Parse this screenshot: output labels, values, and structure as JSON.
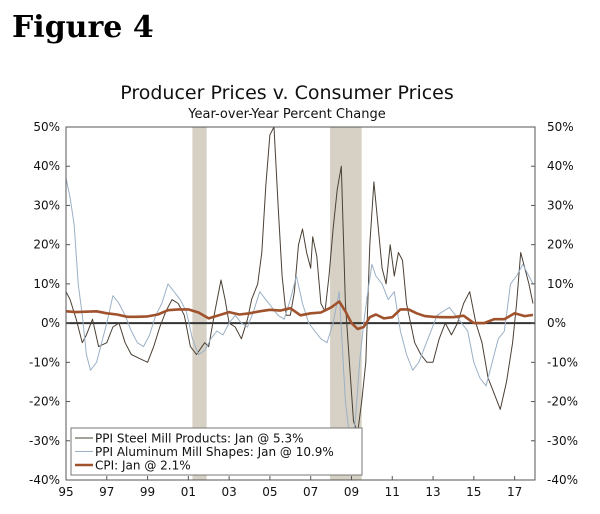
{
  "figure_label": "Figure 4",
  "chart_data": {
    "type": "line",
    "title": "Producer Prices v. Consumer Prices",
    "subtitle": "Year-over-Year Percent Change",
    "xlabel": "",
    "ylabel": "",
    "xlim": [
      1995,
      2018
    ],
    "ylim": [
      -40,
      50
    ],
    "y_ticks": [
      -40,
      -30,
      -20,
      -10,
      0,
      10,
      20,
      30,
      40,
      50
    ],
    "y_tick_labels": [
      "-40%",
      "-30%",
      "-20%",
      "-10%",
      "0%",
      "10%",
      "20%",
      "30%",
      "40%",
      "50%"
    ],
    "x_ticks": [
      1995,
      1997,
      1999,
      2001,
      2003,
      2005,
      2007,
      2009,
      2011,
      2013,
      2015,
      2017
    ],
    "x_tick_labels": [
      "95",
      "97",
      "99",
      "01",
      "03",
      "05",
      "07",
      "09",
      "11",
      "13",
      "15",
      "17"
    ],
    "recessions": [
      [
        2001.2,
        2001.9
      ],
      [
        2007.95,
        2009.5
      ]
    ],
    "legend_position": "bottom-left",
    "series": [
      {
        "name": "PPI Steel Mill Products: Jan @ 5.3%",
        "color": "#4a4035",
        "width": 1,
        "x": [
          1995.0,
          1995.2,
          1995.5,
          1995.8,
          1996.0,
          1996.3,
          1996.6,
          1997.0,
          1997.3,
          1997.6,
          1997.9,
          1998.2,
          1998.6,
          1999.0,
          1999.3,
          1999.6,
          1999.9,
          2000.2,
          2000.5,
          2000.8,
          2001.1,
          2001.4,
          2001.8,
          2002.0,
          2002.3,
          2002.6,
          2002.8,
          2003.0,
          2003.3,
          2003.6,
          2003.9,
          2004.1,
          2004.4,
          2004.6,
          2004.8,
          2005.0,
          2005.2,
          2005.4,
          2005.6,
          2005.8,
          2006.0,
          2006.2,
          2006.4,
          2006.6,
          2006.8,
          2007.0,
          2007.1,
          2007.3,
          2007.5,
          2007.7,
          2007.9,
          2008.1,
          2008.3,
          2008.5,
          2008.7,
          2008.9,
          2009.1,
          2009.3,
          2009.5,
          2009.7,
          2009.9,
          2010.1,
          2010.3,
          2010.5,
          2010.7,
          2010.9,
          2011.1,
          2011.3,
          2011.5,
          2011.7,
          2011.9,
          2012.1,
          2012.4,
          2012.7,
          2013.0,
          2013.3,
          2013.6,
          2013.9,
          2014.2,
          2014.5,
          2014.8,
          2015.1,
          2015.4,
          2015.7,
          2016.0,
          2016.3,
          2016.6,
          2016.9,
          2017.1,
          2017.3,
          2017.5,
          2017.7,
          2017.9
        ],
        "values": [
          8,
          6,
          1,
          -5,
          -3,
          1,
          -6,
          -5,
          -1,
          0,
          -5,
          -8,
          -9,
          -10,
          -6,
          -1,
          3,
          6,
          5,
          2,
          -6,
          -8,
          -5,
          -6,
          3,
          11,
          6,
          0,
          -1,
          -4,
          1,
          6,
          10,
          18,
          35,
          48,
          50,
          30,
          12,
          2,
          2,
          8,
          20,
          24,
          18,
          14,
          22,
          17,
          5,
          3,
          12,
          24,
          34,
          40,
          5,
          -10,
          -25,
          -28,
          -20,
          -10,
          20,
          36,
          25,
          14,
          10,
          20,
          12,
          18,
          16,
          5,
          0,
          -5,
          -8,
          -10,
          -10,
          -4,
          0,
          -3,
          0,
          5,
          8,
          0,
          -5,
          -14,
          -18,
          -22,
          -15,
          -5,
          5,
          18,
          14,
          10,
          5
        ]
      },
      {
        "name": "PPI Aluminum Mill Shapes: Jan @ 10.9%",
        "color": "#9bb0c5",
        "width": 1,
        "x": [
          1995.0,
          1995.2,
          1995.4,
          1995.6,
          1995.8,
          1996.0,
          1996.2,
          1996.5,
          1996.8,
          1997.0,
          1997.3,
          1997.6,
          1997.9,
          1998.2,
          1998.5,
          1998.8,
          1999.1,
          1999.4,
          1999.7,
          2000.0,
          2000.3,
          2000.6,
          2000.9,
          2001.2,
          2001.5,
          2001.8,
          2002.1,
          2002.4,
          2002.7,
          2003.0,
          2003.3,
          2003.6,
          2003.9,
          2004.2,
          2004.5,
          2004.8,
          2005.1,
          2005.4,
          2005.7,
          2006.0,
          2006.3,
          2006.6,
          2006.9,
          2007.2,
          2007.5,
          2007.8,
          2008.1,
          2008.4,
          2008.7,
          2009.0,
          2009.2,
          2009.4,
          2009.6,
          2009.8,
          2010.0,
          2010.2,
          2010.5,
          2010.8,
          2011.1,
          2011.4,
          2011.7,
          2012.0,
          2012.3,
          2012.6,
          2012.9,
          2013.2,
          2013.5,
          2013.8,
          2014.1,
          2014.4,
          2014.7,
          2015.0,
          2015.3,
          2015.6,
          2015.9,
          2016.2,
          2016.5,
          2016.8,
          2017.1,
          2017.4,
          2017.7,
          2017.9
        ],
        "values": [
          37,
          32,
          25,
          10,
          2,
          -8,
          -12,
          -10,
          -4,
          0,
          7,
          5,
          2,
          -2,
          -5,
          -6,
          -3,
          2,
          5,
          10,
          8,
          6,
          3,
          -4,
          -8,
          -7,
          -4,
          -2,
          -3,
          0,
          2,
          0,
          -1,
          3,
          8,
          6,
          4,
          2,
          1,
          6,
          12,
          5,
          0,
          -2,
          -4,
          -5,
          0,
          8,
          -20,
          -33,
          -24,
          -10,
          0,
          8,
          15,
          12,
          10,
          6,
          8,
          -2,
          -8,
          -12,
          -10,
          -6,
          -2,
          2,
          3,
          4,
          2,
          0,
          -2,
          -10,
          -14,
          -16,
          -10,
          -4,
          -2,
          10,
          12,
          15,
          12,
          10
        ]
      },
      {
        "name": "CPI: Jan @ 2.1%",
        "color": "#a0522d",
        "width": 2.6,
        "x": [
          1995.0,
          1995.5,
          1996.0,
          1996.5,
          1997.0,
          1997.5,
          1998.0,
          1998.5,
          1999.0,
          1999.5,
          2000.0,
          2000.5,
          2001.0,
          2001.5,
          2002.0,
          2002.5,
          2003.0,
          2003.5,
          2004.0,
          2004.5,
          2005.0,
          2005.5,
          2006.0,
          2006.5,
          2007.0,
          2007.5,
          2008.0,
          2008.4,
          2008.7,
          2009.0,
          2009.3,
          2009.6,
          2009.9,
          2010.2,
          2010.6,
          2011.0,
          2011.4,
          2011.8,
          2012.2,
          2012.6,
          2013.0,
          2013.5,
          2014.0,
          2014.5,
          2015.0,
          2015.5,
          2016.0,
          2016.5,
          2017.0,
          2017.5,
          2017.9
        ],
        "values": [
          3,
          2.8,
          2.9,
          3,
          2.5,
          2.2,
          1.6,
          1.6,
          1.7,
          2.2,
          3.3,
          3.5,
          3.5,
          2.7,
          1.2,
          2,
          2.8,
          2.2,
          2.5,
          3,
          3.4,
          3.2,
          3.8,
          2,
          2.5,
          2.7,
          4,
          5.5,
          3,
          0,
          -1.5,
          -1,
          1.5,
          2.2,
          1.2,
          1.5,
          3.5,
          3.5,
          2.5,
          1.8,
          1.6,
          1.5,
          1.5,
          1.9,
          0,
          0,
          1,
          1,
          2.5,
          1.8,
          2.1
        ]
      }
    ]
  }
}
